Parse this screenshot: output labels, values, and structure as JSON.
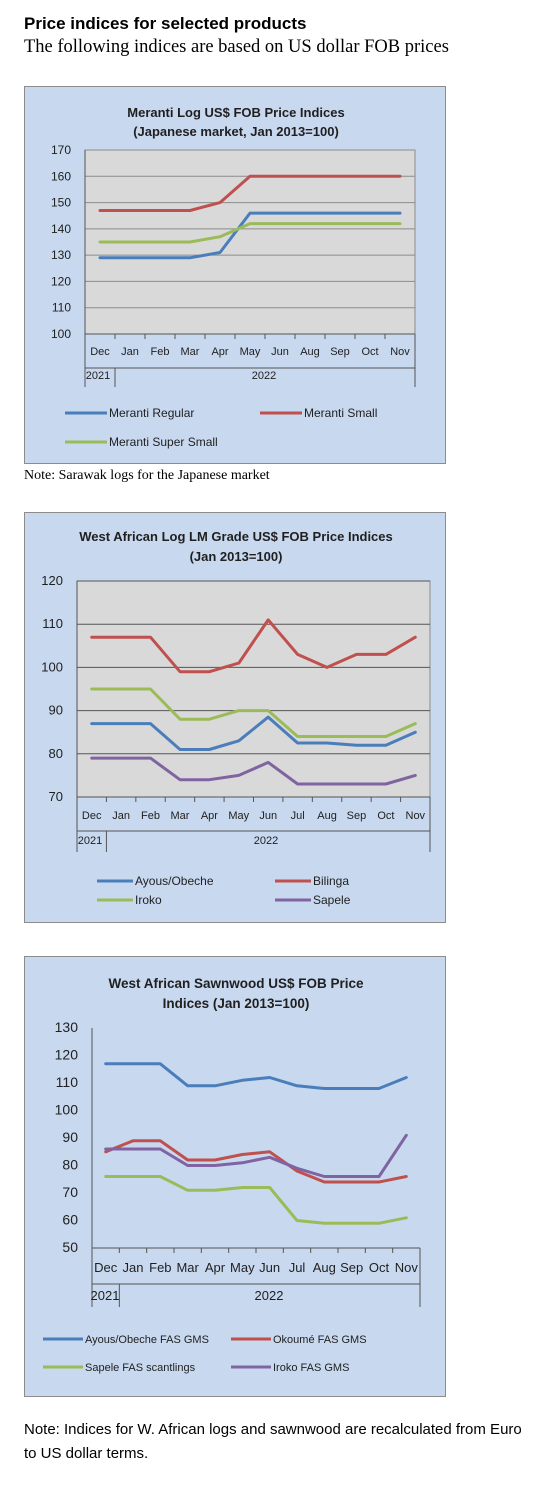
{
  "page": {
    "title": "Price indices for selected products",
    "subtitle": "The following indices are based on US dollar FOB prices",
    "note1": "Note: Sarawak logs for the Japanese market",
    "note2": "Note: Indices for W. African logs and sawnwood are recalculated from Euro to US dollar terms."
  },
  "chart_data": [
    {
      "type": "line",
      "title": [
        "Meranti Log US$ FOB Price Indices",
        "(Japanese market, Jan 2013=100)"
      ],
      "categories": [
        "Dec",
        "Jan",
        "Feb",
        "Mar",
        "Apr",
        "May",
        "Jun",
        "Aug",
        "Sep",
        "Oct",
        "Nov"
      ],
      "year_labels": [
        "2021",
        "2022"
      ],
      "ylim": [
        100,
        170
      ],
      "yticks": [
        100,
        110,
        120,
        130,
        140,
        150,
        160,
        170
      ],
      "grid": true,
      "legend": "bottom",
      "series": [
        {
          "name": "Meranti Regular",
          "color": "#4a7ebb",
          "values": [
            129,
            129,
            129,
            129,
            131,
            146,
            146,
            146,
            146,
            146,
            146
          ]
        },
        {
          "name": "Meranti Small",
          "color": "#c0504d",
          "values": [
            147,
            147,
            147,
            147,
            150,
            160,
            160,
            160,
            160,
            160,
            160
          ]
        },
        {
          "name": "Meranti Super Small",
          "color": "#9bbb59",
          "values": [
            135,
            135,
            135,
            135,
            137,
            142,
            142,
            142,
            142,
            142,
            142
          ]
        }
      ]
    },
    {
      "type": "line",
      "title": [
        "West African Log LM Grade US$ FOB Price Indices",
        "(Jan 2013=100)"
      ],
      "categories": [
        "Dec",
        "Jan",
        "Feb",
        "Mar",
        "Apr",
        "May",
        "Jun",
        "Jul",
        "Aug",
        "Sep",
        "Oct",
        "Nov"
      ],
      "year_labels": [
        "2021",
        "2022"
      ],
      "ylim": [
        70,
        120
      ],
      "yticks": [
        70,
        80,
        90,
        100,
        110,
        120
      ],
      "grid": true,
      "legend": "bottom",
      "series": [
        {
          "name": "Ayous/Obeche",
          "color": "#4a7ebb",
          "values": [
            87,
            87,
            87,
            81,
            81,
            83,
            88.5,
            82.5,
            82.5,
            82,
            82,
            85
          ]
        },
        {
          "name": "Bilinga",
          "color": "#c0504d",
          "values": [
            107,
            107,
            107,
            99,
            99,
            101,
            111,
            103,
            100,
            103,
            103,
            107
          ]
        },
        {
          "name": "Iroko",
          "color": "#9bbb59",
          "values": [
            95,
            95,
            95,
            88,
            88,
            90,
            90,
            84,
            84,
            84,
            84,
            87
          ]
        },
        {
          "name": "Sapele",
          "color": "#8064a2",
          "values": [
            79,
            79,
            79,
            74,
            74,
            75,
            78,
            73,
            73,
            73,
            73,
            75
          ]
        }
      ]
    },
    {
      "type": "line",
      "title": [
        "West African Sawnwood US$ FOB Price",
        "Indices (Jan 2013=100)"
      ],
      "categories": [
        "Dec",
        "Jan",
        "Feb",
        "Mar",
        "Apr",
        "May",
        "Jun",
        "Jul",
        "Aug",
        "Sep",
        "Oct",
        "Nov"
      ],
      "year_labels": [
        "2021",
        "2022"
      ],
      "ylim": [
        50,
        130
      ],
      "yticks": [
        50,
        60,
        70,
        80,
        90,
        100,
        110,
        120,
        130
      ],
      "grid": false,
      "legend": "bottom",
      "series": [
        {
          "name": "Ayous/Obeche FAS GMS",
          "color": "#4a7ebb",
          "values": [
            117,
            117,
            117,
            109,
            109,
            111,
            112,
            109,
            108,
            108,
            108,
            112
          ]
        },
        {
          "name": "Okoumé FAS GMS",
          "color": "#c0504d",
          "values": [
            85,
            89,
            89,
            82,
            82,
            84,
            85,
            78,
            74,
            74,
            74,
            76
          ]
        },
        {
          "name": "Sapele FAS scantlings",
          "color": "#9bbb59",
          "values": [
            76,
            76,
            76,
            71,
            71,
            72,
            72,
            60,
            59,
            59,
            59,
            61
          ]
        },
        {
          "name": "Iroko FAS GMS",
          "color": "#8064a2",
          "values": [
            86,
            86,
            86,
            80,
            80,
            81,
            83,
            79,
            76,
            76,
            76,
            91
          ]
        }
      ]
    }
  ]
}
